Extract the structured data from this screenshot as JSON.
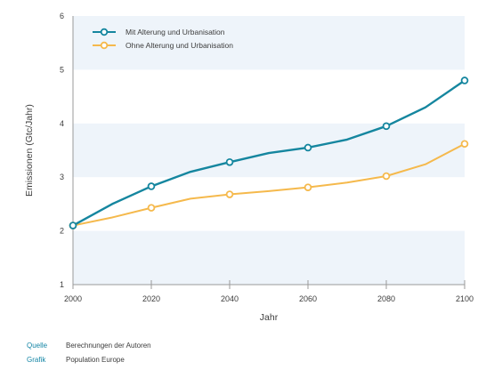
{
  "chart_data": {
    "type": "line",
    "ylabel": "Emissionen (Gtc/Jahr)",
    "xlabel": "Jahr",
    "xlim": [
      2000,
      2100
    ],
    "ylim": [
      1,
      6
    ],
    "x_ticks": [
      2000,
      2020,
      2040,
      2060,
      2080,
      2100
    ],
    "y_ticks": [
      1,
      2,
      3,
      4,
      5,
      6
    ],
    "grid": "alternating horizontal bands",
    "legend_position": "top-left",
    "x": [
      2000,
      2010,
      2020,
      2030,
      2040,
      2050,
      2060,
      2070,
      2080,
      2090,
      2100
    ],
    "series": [
      {
        "name": "Mit Alterung und Urbanisation",
        "color": "#15869f",
        "values": [
          2.1,
          2.5,
          2.83,
          3.1,
          3.28,
          3.45,
          3.55,
          3.7,
          3.95,
          4.3,
          4.8
        ]
      },
      {
        "name": "Ohne Alterung und Urbanisation",
        "color": "#f5b94c",
        "values": [
          2.1,
          2.25,
          2.43,
          2.6,
          2.68,
          2.74,
          2.81,
          2.9,
          3.02,
          3.24,
          3.62
        ]
      }
    ],
    "markers_at": [
      2000,
      2020,
      2040,
      2060,
      2080,
      2100
    ]
  },
  "footer": {
    "source_label": "Quelle",
    "source_value": "Berechnungen der Autoren",
    "graphic_label": "Grafik",
    "graphic_value": "Population Europe"
  },
  "colors": {
    "band": "#eef4fa",
    "axis": "#9a9a9a",
    "accent": "#1586a6"
  }
}
